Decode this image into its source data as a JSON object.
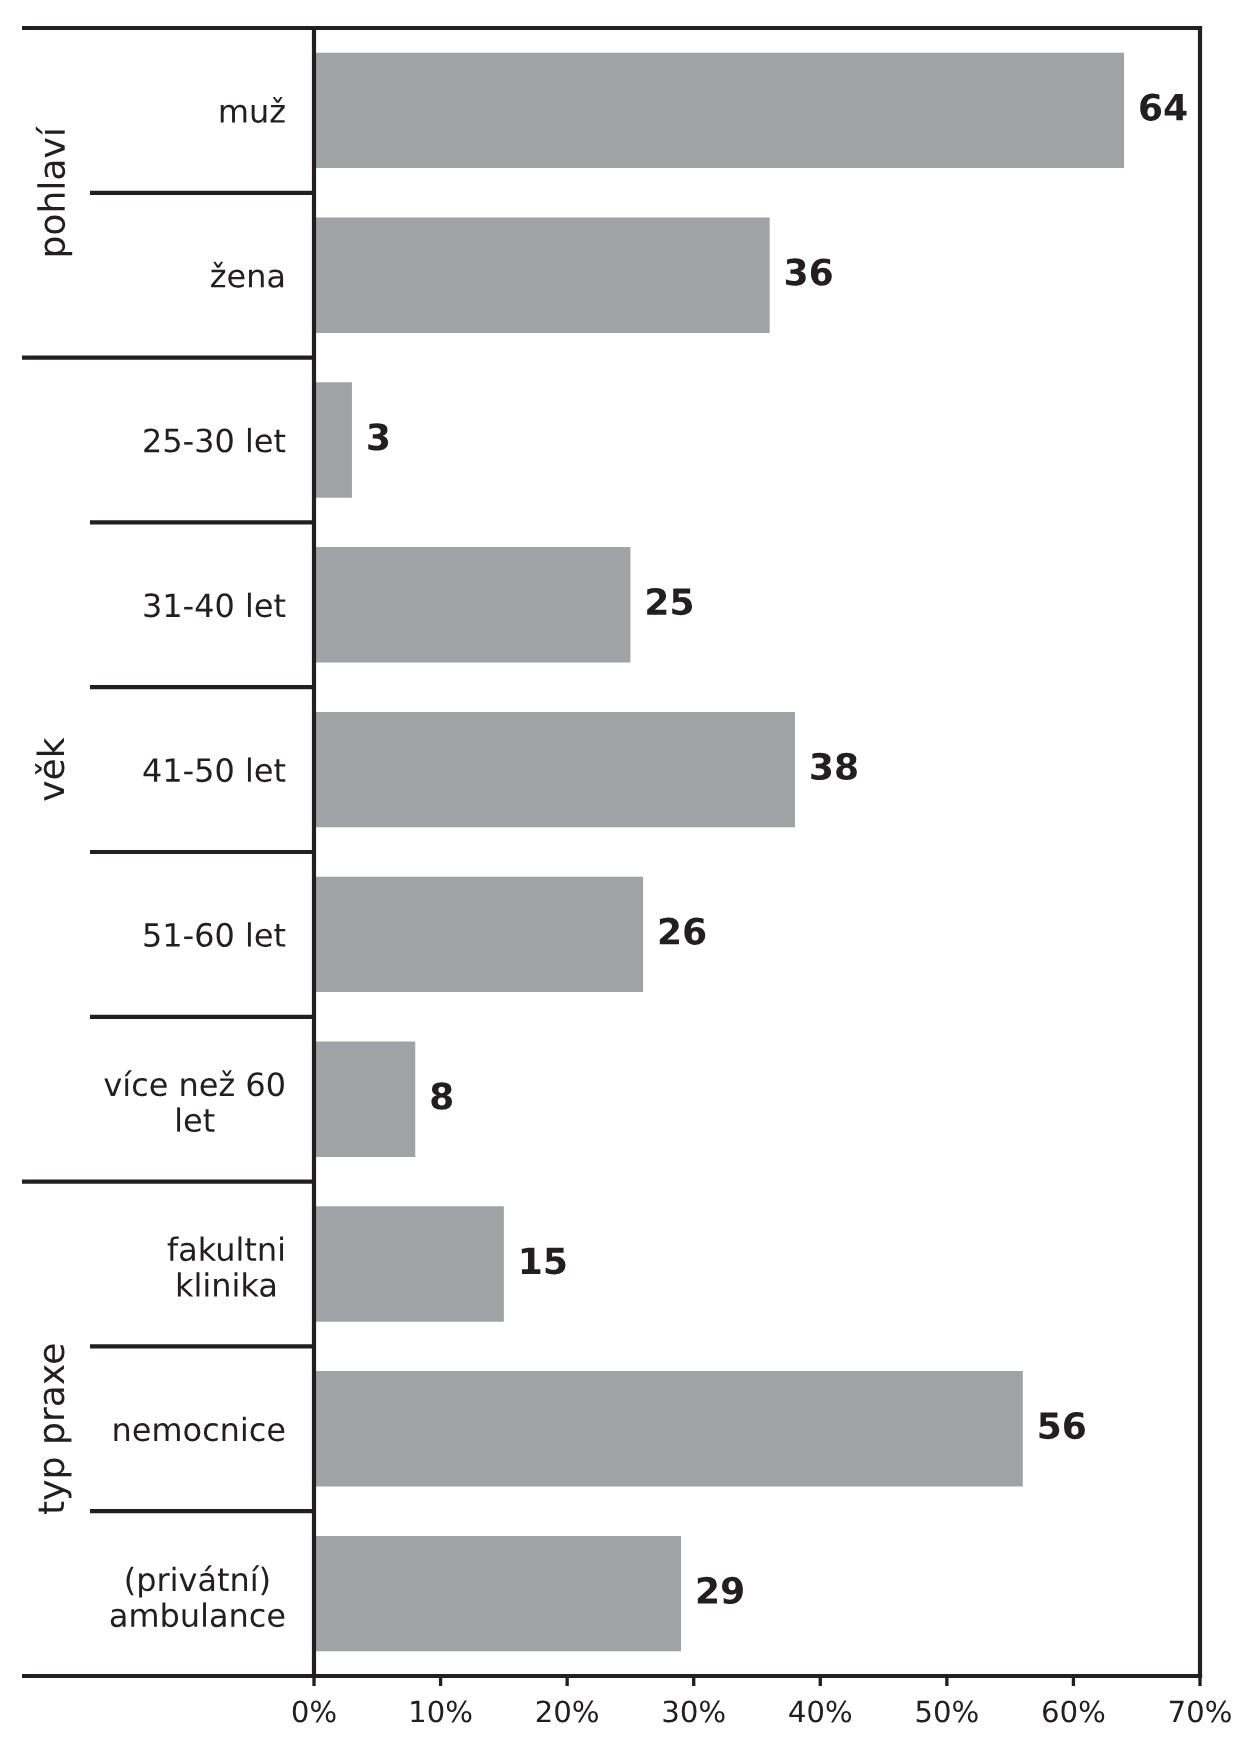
{
  "chart_data": {
    "type": "bar",
    "orientation": "horizontal",
    "categories": [
      "muž",
      "žena",
      "25-30 let",
      "31-40 let",
      "41-50 let",
      "51-60 let",
      "více než 60 let",
      "fakultni klinika",
      "nemocnice",
      "(privátní) ambulance"
    ],
    "values": [
      64,
      36,
      3,
      25,
      38,
      26,
      8,
      15,
      56,
      29
    ],
    "color": "#a1a2a6",
    "xlim": [
      0,
      70
    ],
    "xticks": [
      {
        "value": 0,
        "label": "0%"
      },
      {
        "value": 10,
        "label": "10%"
      },
      {
        "value": 20,
        "label": "20%"
      },
      {
        "value": 30,
        "label": "30%"
      },
      {
        "value": 40,
        "label": "40%"
      },
      {
        "value": 50,
        "label": "50%"
      },
      {
        "value": 60,
        "label": "60%"
      },
      {
        "value": 70,
        "label": "70%"
      }
    ],
    "data_labels": true,
    "annotations": [
      "pohlaví",
      "věk",
      "typ praxe"
    ]
  }
}
